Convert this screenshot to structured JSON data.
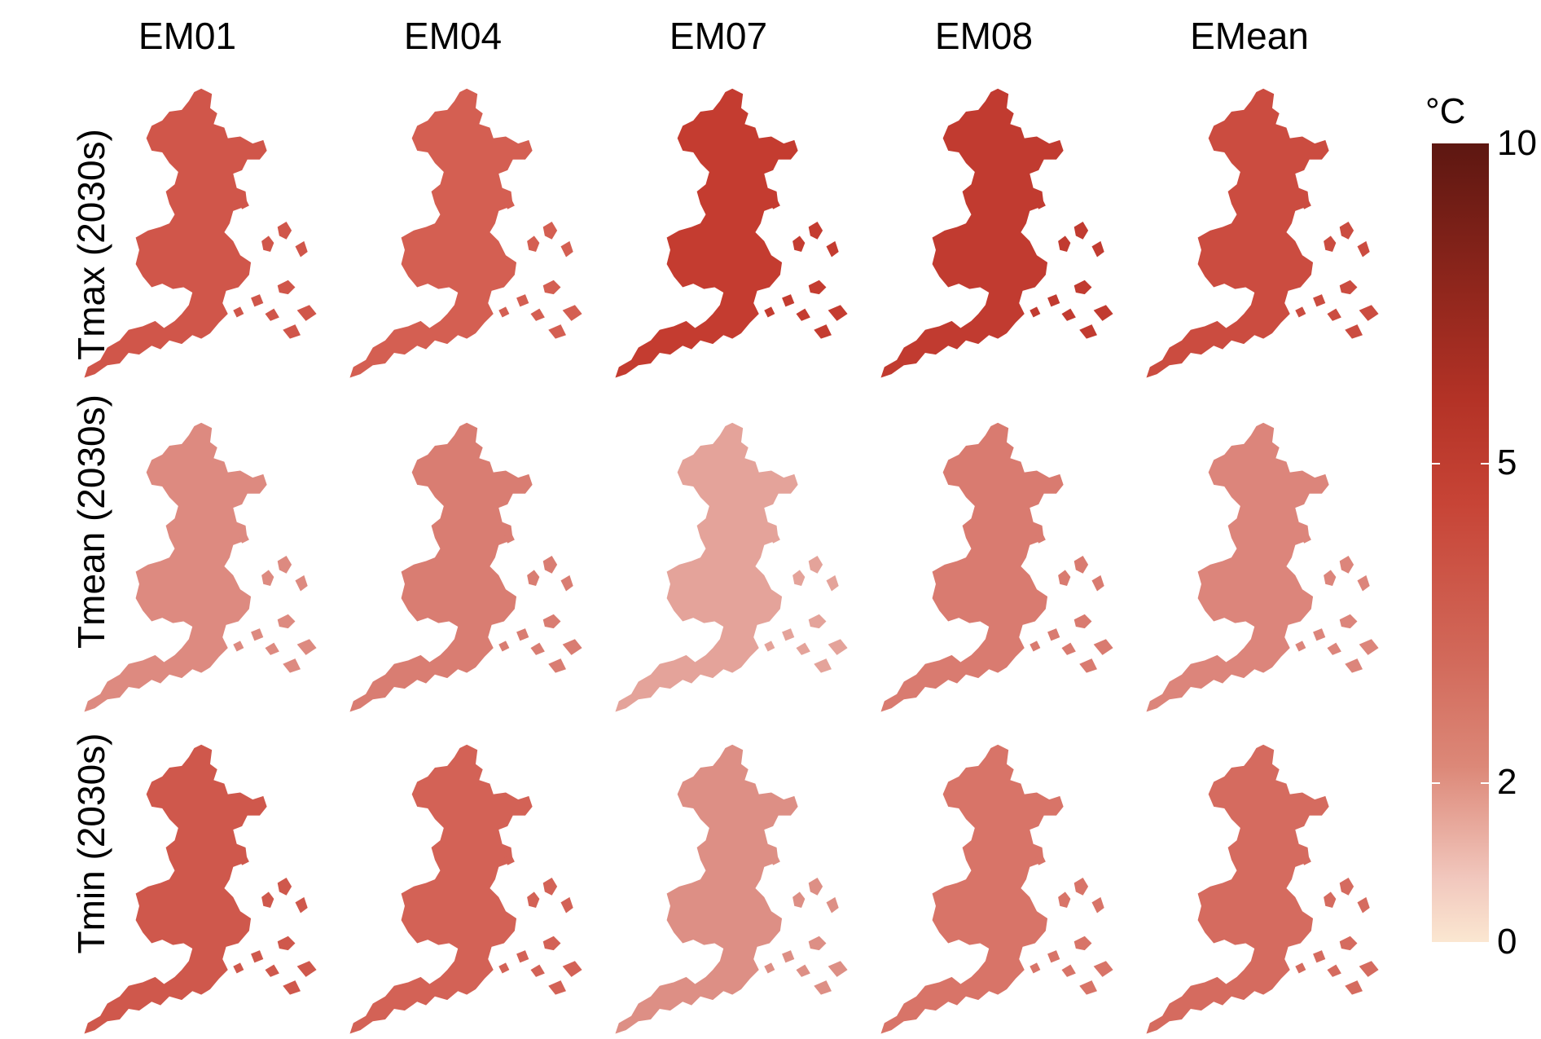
{
  "columns": [
    "EM01",
    "EM04",
    "EM07",
    "EM08",
    "EMean"
  ],
  "rows": [
    "Tmax (2030s)",
    "Tmean (2030s)",
    "Tmin (2030s)"
  ],
  "legend": {
    "unit": "°C",
    "min": 0,
    "max": 10,
    "ticks": [
      {
        "label": "10",
        "value": 10
      },
      {
        "label": "5",
        "value": 5
      },
      {
        "label": "2",
        "value": 2
      },
      {
        "label": "0",
        "value": 0
      }
    ],
    "color_low": "#fbe7d1",
    "color_high": "#5d1711"
  },
  "panel_fills": [
    [
      "#d0564a",
      "#d45f52",
      "#c43c30",
      "#c13b30",
      "#cb4c40"
    ],
    [
      "#dd8a80",
      "#d97d72",
      "#e4a39a",
      "#d97b70",
      "#dc857b"
    ],
    [
      "#cf584c",
      "#d36256",
      "#dd8f85",
      "#d87468",
      "#d56b5f"
    ]
  ]
}
